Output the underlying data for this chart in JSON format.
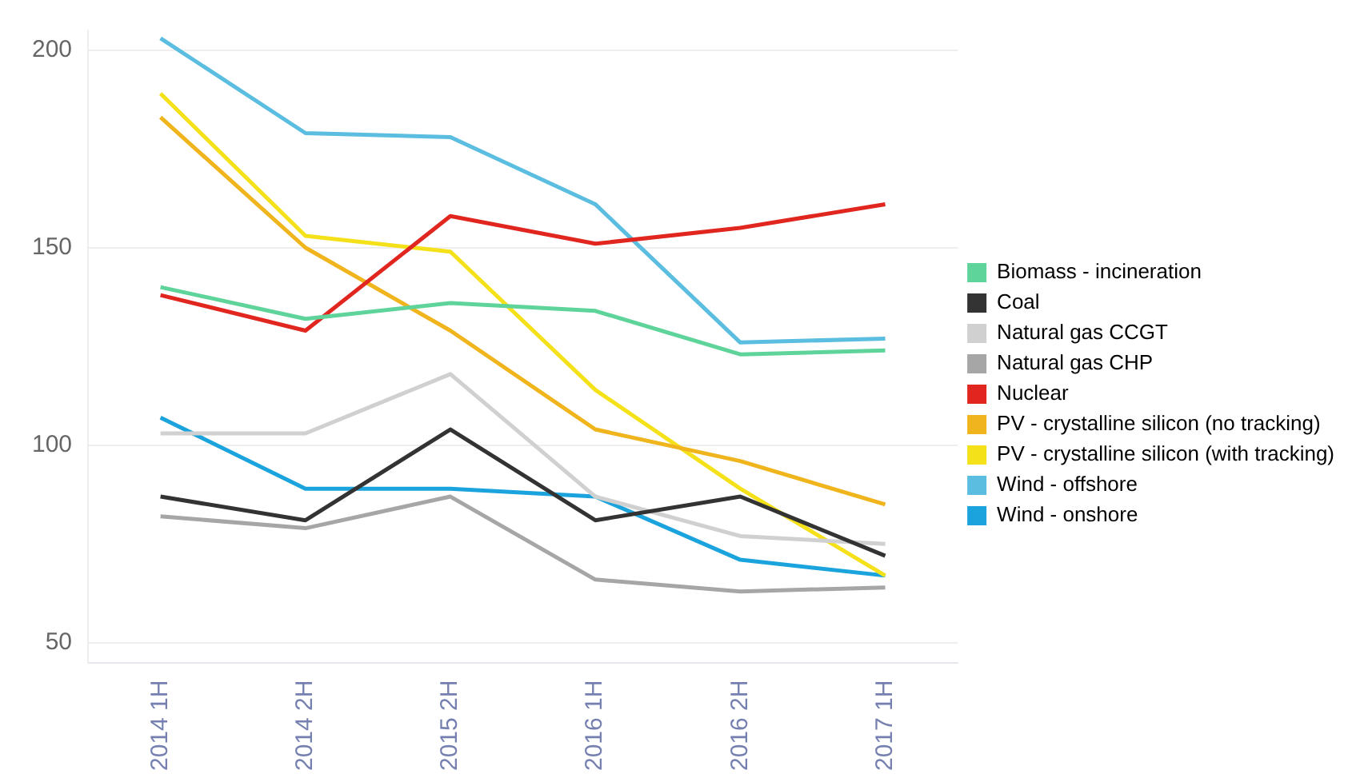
{
  "chart_data": {
    "type": "line",
    "categories": [
      "2014 1H",
      "2014 2H",
      "2015 2H",
      "2016 1H",
      "2016 2H",
      "2017 1H"
    ],
    "series": [
      {
        "name": "Biomass - incineration",
        "color": "#5fd49a",
        "values": [
          140,
          132,
          136,
          134,
          123,
          124
        ]
      },
      {
        "name": "Coal",
        "color": "#333333",
        "values": [
          87,
          81,
          104,
          81,
          87,
          72
        ]
      },
      {
        "name": "Natural gas CCGT",
        "color": "#d0d0d0",
        "values": [
          103,
          103,
          118,
          87,
          77,
          75
        ]
      },
      {
        "name": "Natural gas CHP",
        "color": "#a6a6a6",
        "values": [
          82,
          79,
          87,
          66,
          63,
          64
        ]
      },
      {
        "name": "Nuclear",
        "color": "#e0261f",
        "values": [
          138,
          129,
          158,
          151,
          155,
          161
        ]
      },
      {
        "name": "PV - crystalline silicon (no tracking)",
        "color": "#f0b41c",
        "values": [
          183,
          150,
          129,
          104,
          96,
          85
        ]
      },
      {
        "name": "PV - crystalline silicon (with tracking)",
        "color": "#f5e11a",
        "values": [
          189,
          153,
          149,
          114,
          89,
          67
        ]
      },
      {
        "name": "Wind - offshore",
        "color": "#5bbde0",
        "values": [
          203,
          179,
          178,
          161,
          126,
          127
        ]
      },
      {
        "name": "Wind - onshore",
        "color": "#1aa3dc",
        "values": [
          107,
          89,
          89,
          87,
          71,
          67
        ]
      }
    ],
    "ylim": [
      45,
      205
    ],
    "yticks": [
      50,
      100,
      150,
      200
    ],
    "grid": "y",
    "legend": "right",
    "marker": "none",
    "line_style": "solid"
  }
}
